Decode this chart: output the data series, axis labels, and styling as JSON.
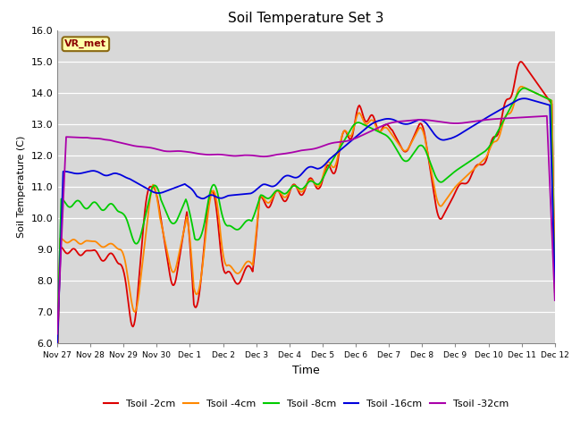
{
  "title": "Soil Temperature Set 3",
  "xlabel": "Time",
  "ylabel": "Soil Temperature (C)",
  "ylim": [
    6.0,
    16.0
  ],
  "yticks": [
    6.0,
    7.0,
    8.0,
    9.0,
    10.0,
    11.0,
    12.0,
    13.0,
    14.0,
    15.0,
    16.0
  ],
  "plot_bg_color": "#d8d8d8",
  "fig_bg_color": "#ffffff",
  "grid_color": "#ffffff",
  "legend_label": "VR_met",
  "series_colors": {
    "Tsoil -2cm": "#dd0000",
    "Tsoil -4cm": "#ff8800",
    "Tsoil -8cm": "#00cc00",
    "Tsoil -16cm": "#0000dd",
    "Tsoil -32cm": "#aa00aa"
  },
  "xtick_labels": [
    "Nov 27",
    "Nov 28",
    "Nov 29",
    "Nov 30",
    "Dec 1",
    "Dec 2",
    "Dec 3",
    "Dec 4",
    "Dec 5",
    "Dec 6",
    "Dec 7",
    "Dec 8",
    "Dec 9",
    "Dec 10",
    "Dec 11",
    "Dec 12"
  ],
  "n_points": 500
}
